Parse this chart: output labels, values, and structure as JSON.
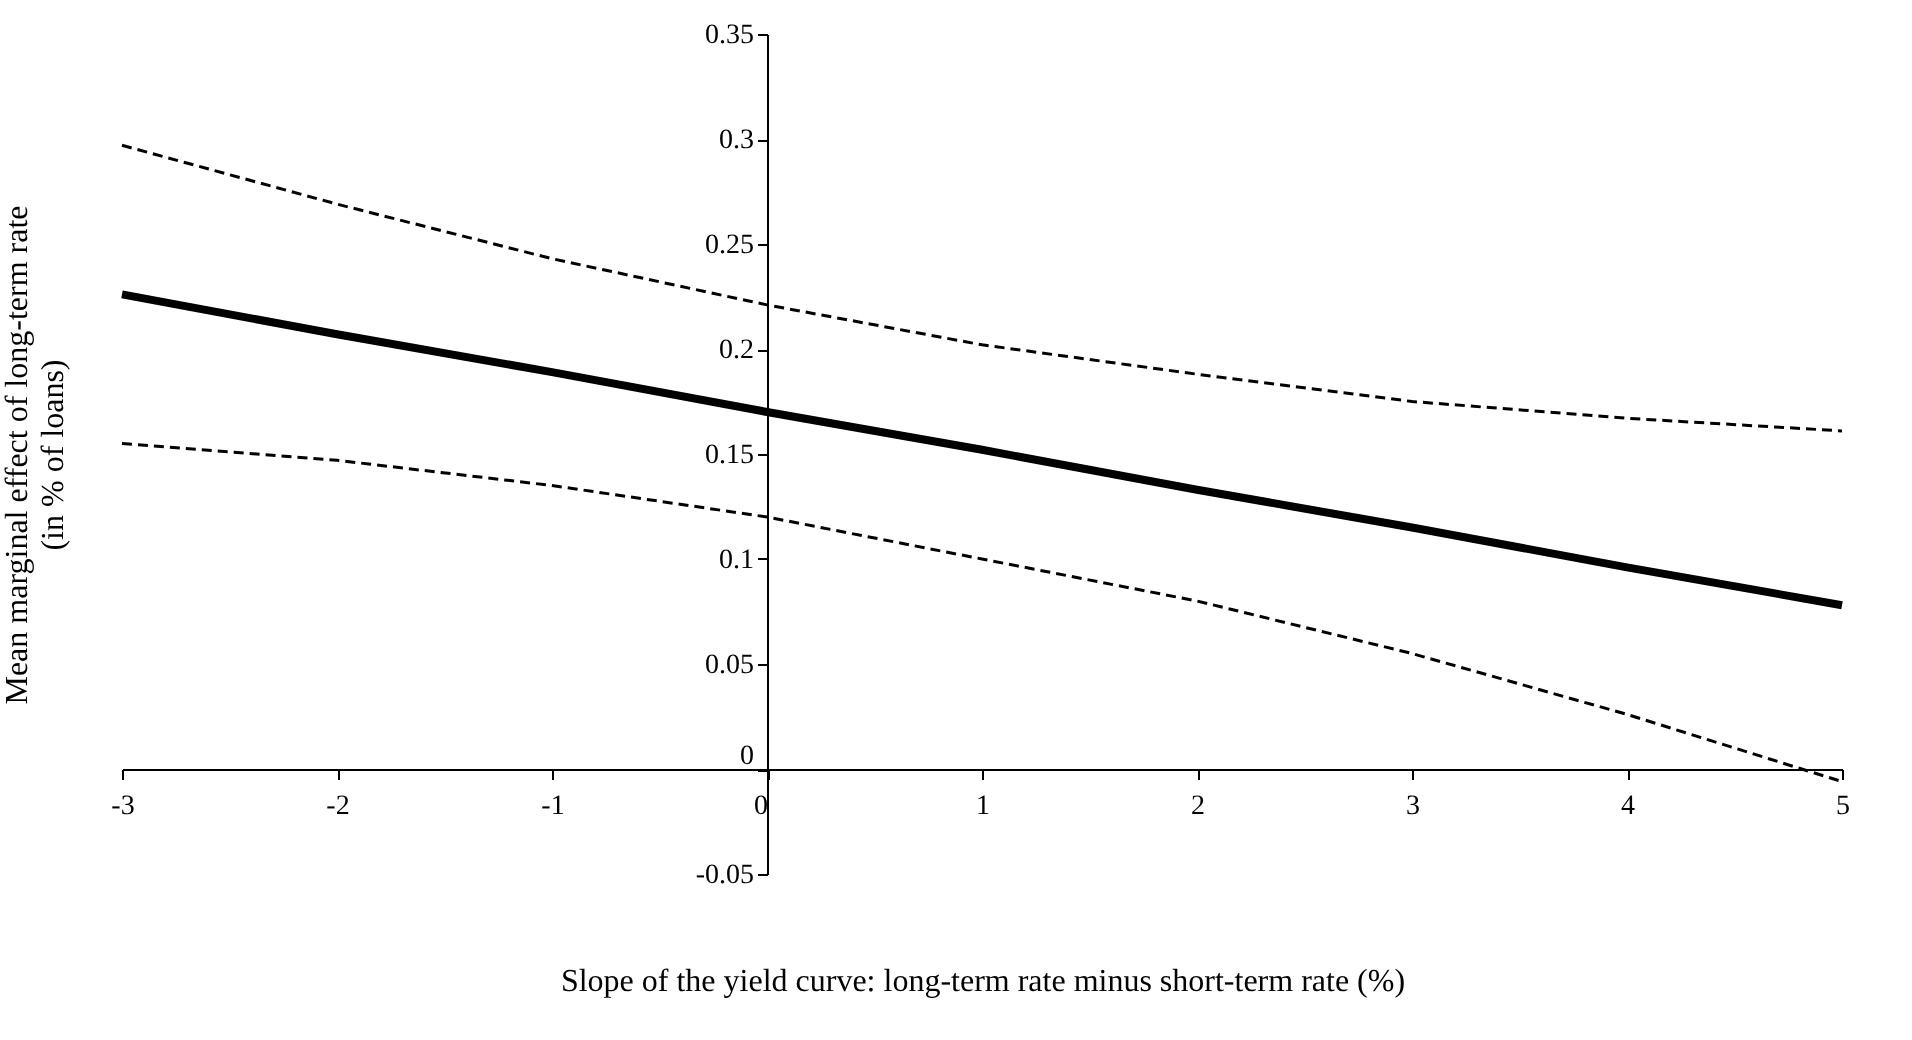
{
  "chart_data": {
    "type": "line",
    "xlabel": "Slope of the yield curve: long-term rate minus short-term rate (%)",
    "ylabel": "Mean marginal effect of long-term rate\n(in % of loans)",
    "x": [
      -3,
      -2,
      -1,
      0,
      1,
      2,
      3,
      4,
      5
    ],
    "series": [
      {
        "color": "#000000",
        "line_style": "solid",
        "values": [
          0.226,
          0.207,
          0.189,
          0.17,
          0.152,
          0.133,
          0.115,
          0.096,
          0.078
        ]
      },
      {
        "color": "#000000",
        "line_style": "dashed",
        "values": [
          0.297,
          0.269,
          0.243,
          0.221,
          0.202,
          0.188,
          0.175,
          0.167,
          0.161
        ]
      },
      {
        "color": "#000000",
        "line_style": "dashed",
        "values": [
          0.155,
          0.147,
          0.135,
          0.12,
          0.1,
          0.08,
          0.055,
          0.026,
          -0.006
        ]
      }
    ],
    "xlim": [
      -3,
      5
    ],
    "xticks": [
      -3,
      -2,
      -1,
      0,
      1,
      2,
      3,
      4,
      5
    ],
    "ylim": [
      -0.05,
      0.35
    ],
    "yticks": [
      -0.05,
      0,
      0.05,
      0.1,
      0.15,
      0.2,
      0.25,
      0.3,
      0.35
    ]
  }
}
